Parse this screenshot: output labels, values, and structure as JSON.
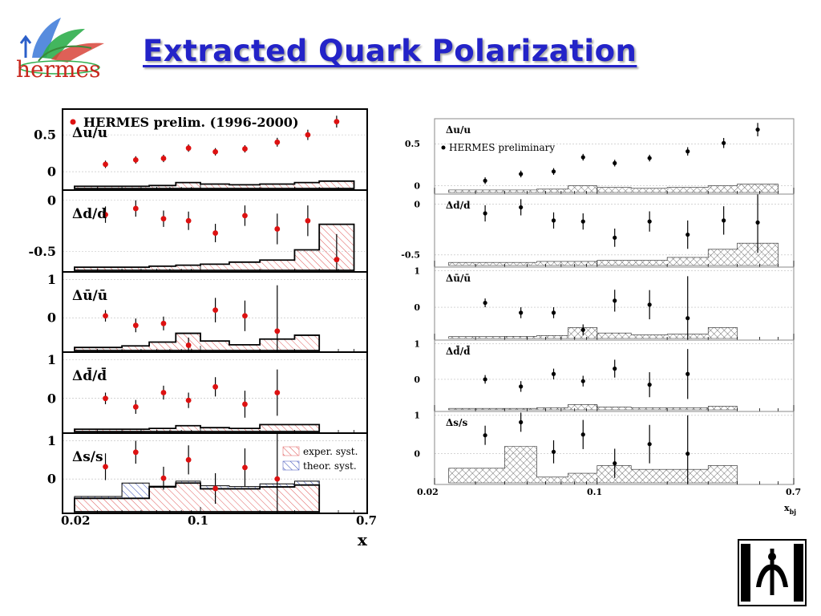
{
  "slide": {
    "title": "Extracted Quark Polarization",
    "logo_text": "hermes",
    "colors": {
      "title": "#2323c8",
      "logo_text": "#c8281e",
      "data_points": "#dd1111",
      "exper_syst": "#e05a5a",
      "theor_syst": "#3b4fb8"
    }
  },
  "left_panel": {
    "legend_main": "HERMES prelim. (1996-2000)",
    "legend_exper": "exper. syst.",
    "legend_theor": "theor. syst.",
    "xlabel": "x",
    "xticks": [
      "0.02",
      "0.1",
      "0.7"
    ]
  },
  "right_panel": {
    "legend_main": "HERMES preliminary",
    "xlabel": "x",
    "xlabel_sub": "bj",
    "xticks": [
      "0.02",
      "0.1",
      "0.7"
    ]
  },
  "chart_data": [
    {
      "type": "scatter",
      "title": "HERMES prelim. (1996-2000)",
      "xlabel": "x",
      "xscale": "log",
      "xlim": [
        0.02,
        0.7
      ],
      "legend": [
        "HERMES prelim. (1996-2000)",
        "exper. syst.",
        "theor. syst."
      ],
      "x": [
        0.033,
        0.047,
        0.065,
        0.087,
        0.119,
        0.168,
        0.245,
        0.35,
        0.49
      ],
      "panels": [
        {
          "label": "Δu/u",
          "ylim": [
            -0.25,
            0.85
          ],
          "yticks": [
            "0.5",
            "0"
          ],
          "ytick_values": [
            0.5,
            0
          ],
          "values": [
            0.1,
            0.16,
            0.18,
            0.32,
            0.27,
            0.31,
            0.4,
            0.5,
            0.68
          ],
          "errors": [
            0.05,
            0.05,
            0.05,
            0.05,
            0.05,
            0.05,
            0.06,
            0.07,
            0.08
          ],
          "syst_edges": [
            0.023,
            0.04,
            0.055,
            0.075,
            0.1,
            0.14,
            0.2,
            0.3,
            0.4,
            0.6
          ],
          "syst": [
            0.03,
            0.03,
            0.04,
            0.08,
            0.06,
            0.05,
            0.06,
            0.08,
            0.1
          ]
        },
        {
          "label": "Δd/d",
          "ylim": [
            -0.7,
            0.1
          ],
          "yticks": [
            "0",
            "-0.5"
          ],
          "ytick_values": [
            0,
            -0.5
          ],
          "values": [
            -0.14,
            -0.08,
            -0.18,
            -0.2,
            -0.32,
            -0.15,
            -0.28,
            -0.2,
            -0.58
          ],
          "errors": [
            0.08,
            0.08,
            0.08,
            0.09,
            0.09,
            0.1,
            0.15,
            0.15,
            0.25
          ],
          "syst_edges": [
            0.023,
            0.04,
            0.055,
            0.075,
            0.1,
            0.14,
            0.2,
            0.3,
            0.4,
            0.6
          ],
          "syst": [
            0.03,
            0.03,
            0.04,
            0.05,
            0.06,
            0.08,
            0.1,
            0.2,
            0.45
          ]
        },
        {
          "label": "Δū/ū",
          "ylim": [
            -0.9,
            1.2
          ],
          "yticks": [
            "1",
            "0"
          ],
          "ytick_values": [
            1,
            0
          ],
          "values": [
            0.05,
            -0.2,
            -0.15,
            -0.72,
            0.2,
            0.05,
            -0.35
          ],
          "errors": [
            0.15,
            0.18,
            0.18,
            0.2,
            0.32,
            0.4,
            1.2
          ],
          "syst_edges": [
            0.023,
            0.04,
            0.055,
            0.075,
            0.1,
            0.14,
            0.2,
            0.3,
            0.4
          ],
          "syst": [
            0.08,
            0.12,
            0.22,
            0.45,
            0.25,
            0.15,
            0.3,
            0.4
          ]
        },
        {
          "label": "Δd̄/d̄",
          "ylim": [
            -0.9,
            1.2
          ],
          "yticks": [
            "1",
            "0"
          ],
          "ytick_values": [
            1,
            0
          ],
          "values": [
            0.0,
            -0.22,
            0.15,
            -0.05,
            0.3,
            -0.15,
            0.15
          ],
          "errors": [
            0.15,
            0.18,
            0.18,
            0.2,
            0.25,
            0.35,
            0.6
          ],
          "syst_edges": [
            0.023,
            0.04,
            0.055,
            0.075,
            0.1,
            0.14,
            0.2,
            0.3,
            0.4
          ],
          "syst": [
            0.06,
            0.06,
            0.08,
            0.15,
            0.1,
            0.08,
            0.18,
            0.18
          ]
        },
        {
          "label": "Δs/s",
          "ylim": [
            -0.9,
            1.2
          ],
          "yticks": [
            "1",
            "0"
          ],
          "ytick_values": [
            1,
            0
          ],
          "values": [
            0.32,
            0.7,
            0.02,
            0.5,
            -0.25,
            0.3,
            0.0
          ],
          "errors": [
            0.35,
            0.3,
            0.3,
            0.38,
            0.4,
            0.5,
            1.2
          ],
          "syst_edges": [
            0.023,
            0.04,
            0.055,
            0.075,
            0.1,
            0.14,
            0.2,
            0.3,
            0.4
          ],
          "syst": [
            0.35,
            0.35,
            0.65,
            0.75,
            0.6,
            0.6,
            0.65,
            0.7
          ],
          "theor_syst": [
            0.05,
            0.4,
            0.02,
            0.05,
            0.08,
            0.06,
            0.08,
            0.1
          ]
        }
      ]
    },
    {
      "type": "scatter",
      "title": "HERMES preliminary",
      "xlabel": "x_bj",
      "xscale": "log",
      "xlim": [
        0.02,
        0.7
      ],
      "legend": [
        "HERMES preliminary"
      ],
      "x": [
        0.033,
        0.047,
        0.065,
        0.087,
        0.119,
        0.168,
        0.245,
        0.35,
        0.49
      ],
      "panels": [
        {
          "label": "Δu/u",
          "ylim": [
            -0.1,
            0.8
          ],
          "yticks": [
            "0.5",
            "0"
          ],
          "ytick_values": [
            0.5,
            0
          ],
          "values": [
            0.06,
            0.14,
            0.17,
            0.34,
            0.27,
            0.33,
            0.41,
            0.51,
            0.67
          ],
          "errors": [
            0.04,
            0.04,
            0.04,
            0.04,
            0.04,
            0.04,
            0.05,
            0.06,
            0.08
          ],
          "syst_edges": [
            0.023,
            0.04,
            0.055,
            0.075,
            0.1,
            0.14,
            0.2,
            0.3,
            0.4,
            0.6
          ],
          "syst": [
            0.03,
            0.03,
            0.04,
            0.08,
            0.06,
            0.05,
            0.06,
            0.08,
            0.1
          ]
        },
        {
          "label": "Δd/d",
          "ylim": [
            -0.62,
            0.1
          ],
          "yticks": [
            "0",
            "-0.5"
          ],
          "ytick_values": [
            0,
            -0.5
          ],
          "values": [
            -0.09,
            -0.03,
            -0.16,
            -0.17,
            -0.33,
            -0.17,
            -0.3,
            -0.16,
            -0.18
          ],
          "errors": [
            0.08,
            0.08,
            0.08,
            0.08,
            0.09,
            0.1,
            0.14,
            0.14,
            0.3
          ],
          "syst_edges": [
            0.023,
            0.04,
            0.055,
            0.075,
            0.1,
            0.14,
            0.2,
            0.3,
            0.4,
            0.6
          ],
          "syst": [
            0.03,
            0.03,
            0.04,
            0.04,
            0.05,
            0.05,
            0.08,
            0.16,
            0.22
          ]
        },
        {
          "label": "Δū/ū",
          "ylim": [
            -0.9,
            1.1
          ],
          "yticks": [
            "1",
            "0"
          ],
          "ytick_values": [
            1,
            0
          ],
          "values": [
            0.12,
            -0.15,
            -0.15,
            -0.62,
            0.18,
            0.07,
            -0.3
          ],
          "errors": [
            0.12,
            0.15,
            0.15,
            0.15,
            0.3,
            0.4,
            1.15
          ],
          "syst_edges": [
            0.023,
            0.04,
            0.055,
            0.075,
            0.1,
            0.14,
            0.2,
            0.3,
            0.4
          ],
          "syst": [
            0.05,
            0.06,
            0.08,
            0.3,
            0.15,
            0.1,
            0.12,
            0.3
          ]
        },
        {
          "label": "Δd̄/d̄",
          "ylim": [
            -0.9,
            1.1
          ],
          "yticks": [
            "1",
            "0"
          ],
          "ytick_values": [
            1,
            0
          ],
          "values": [
            0.0,
            -0.2,
            0.15,
            -0.05,
            0.3,
            -0.15,
            0.15
          ],
          "errors": [
            0.12,
            0.15,
            0.15,
            0.15,
            0.25,
            0.35,
            0.7
          ],
          "syst_edges": [
            0.023,
            0.04,
            0.055,
            0.075,
            0.1,
            0.14,
            0.2,
            0.3,
            0.4
          ],
          "syst": [
            0.04,
            0.04,
            0.06,
            0.15,
            0.08,
            0.06,
            0.06,
            0.1
          ]
        },
        {
          "label": "Δs/s",
          "ylim": [
            -0.8,
            1.1
          ],
          "yticks": [
            "1",
            "0"
          ],
          "ytick_values": [
            1,
            0
          ],
          "values": [
            0.48,
            0.82,
            0.05,
            0.5,
            -0.25,
            0.25,
            0.0
          ],
          "errors": [
            0.25,
            0.25,
            0.3,
            0.38,
            0.38,
            0.5,
            1.0
          ],
          "syst_edges": [
            0.023,
            0.04,
            0.055,
            0.075,
            0.1,
            0.14,
            0.2,
            0.3,
            0.4
          ],
          "syst": [
            0.38,
            0.95,
            0.15,
            0.25,
            0.45,
            0.35,
            0.35,
            0.45
          ]
        }
      ]
    }
  ]
}
